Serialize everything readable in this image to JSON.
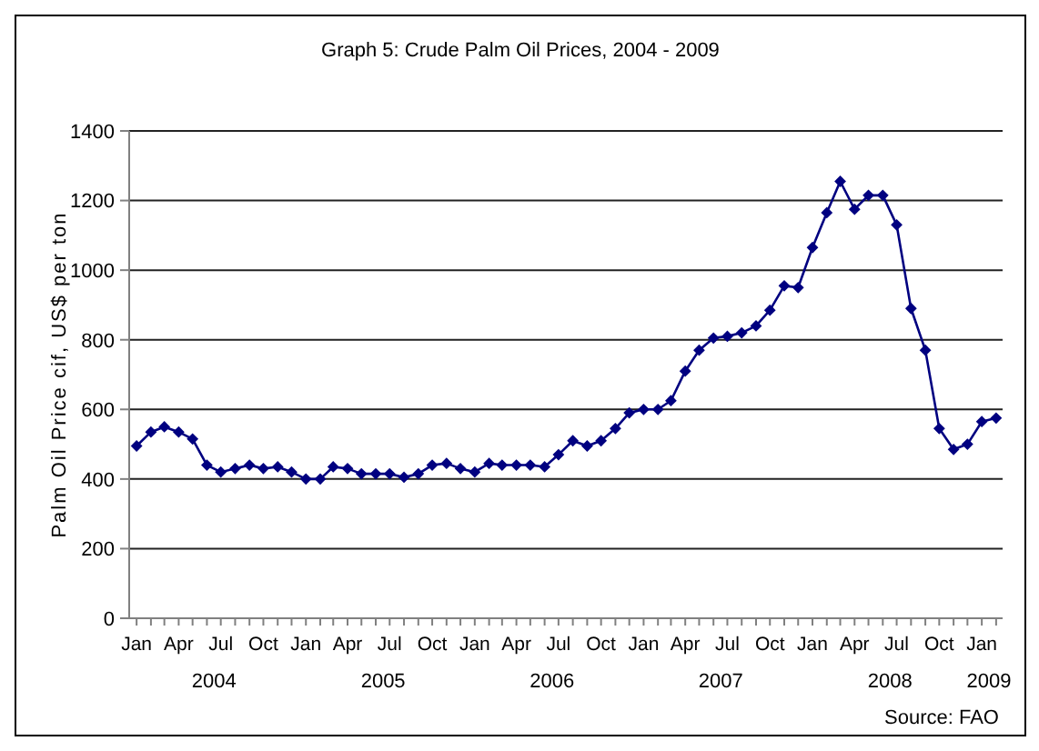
{
  "chart_data": {
    "type": "line",
    "title": "Graph 5: Crude Palm Oil Prices, 2004 - 2009",
    "ylabel": "Palm Oil Price cif, US$ per ton",
    "x": [
      "2004-01",
      "2004-02",
      "2004-03",
      "2004-04",
      "2004-05",
      "2004-06",
      "2004-07",
      "2004-08",
      "2004-09",
      "2004-10",
      "2004-11",
      "2004-12",
      "2005-01",
      "2005-02",
      "2005-03",
      "2005-04",
      "2005-05",
      "2005-06",
      "2005-07",
      "2005-08",
      "2005-09",
      "2005-10",
      "2005-11",
      "2005-12",
      "2006-01",
      "2006-02",
      "2006-03",
      "2006-04",
      "2006-05",
      "2006-06",
      "2006-07",
      "2006-08",
      "2006-09",
      "2006-10",
      "2006-11",
      "2006-12",
      "2007-01",
      "2007-02",
      "2007-03",
      "2007-04",
      "2007-05",
      "2007-06",
      "2007-07",
      "2007-08",
      "2007-09",
      "2007-10",
      "2007-11",
      "2007-12",
      "2008-01",
      "2008-02",
      "2008-03",
      "2008-04",
      "2008-05",
      "2008-06",
      "2008-07",
      "2008-08",
      "2008-09",
      "2008-10",
      "2008-11",
      "2008-12",
      "2009-01",
      "2009-02"
    ],
    "values": [
      495,
      535,
      550,
      535,
      515,
      440,
      420,
      430,
      440,
      430,
      435,
      420,
      400,
      400,
      435,
      430,
      415,
      415,
      415,
      405,
      415,
      440,
      445,
      430,
      420,
      445,
      440,
      440,
      440,
      435,
      470,
      510,
      495,
      510,
      545,
      590,
      600,
      600,
      625,
      710,
      770,
      805,
      810,
      820,
      840,
      885,
      955,
      950,
      1065,
      1165,
      1255,
      1175,
      1215,
      1215,
      1130,
      890,
      770,
      545,
      485,
      500,
      565,
      575
    ],
    "color": "#000080",
    "xlim": [
      "2003-12-16",
      "2009-02-15"
    ],
    "xticks": [
      {
        "value": "2004-01",
        "label": "Jan"
      },
      {
        "value": "2004-02",
        "label": null
      },
      {
        "value": "2004-03",
        "label": null
      },
      {
        "value": "2004-04",
        "label": "Apr"
      },
      {
        "value": "2004-05",
        "label": null
      },
      {
        "value": "2004-06",
        "label": null
      },
      {
        "value": "2004-07",
        "label": "Jul"
      },
      {
        "value": "2004-08",
        "label": null
      },
      {
        "value": "2004-09",
        "label": null
      },
      {
        "value": "2004-10",
        "label": "Oct"
      },
      {
        "value": "2004-11",
        "label": null
      },
      {
        "value": "2004-12",
        "label": null
      },
      {
        "value": "2005-01",
        "label": "Jan"
      },
      {
        "value": "2005-02",
        "label": null
      },
      {
        "value": "2005-03",
        "label": null
      },
      {
        "value": "2005-04",
        "label": "Apr"
      },
      {
        "value": "2005-05",
        "label": null
      },
      {
        "value": "2005-06",
        "label": null
      },
      {
        "value": "2005-07",
        "label": "Jul"
      },
      {
        "value": "2005-08",
        "label": null
      },
      {
        "value": "2005-09",
        "label": null
      },
      {
        "value": "2005-10",
        "label": "Oct"
      },
      {
        "value": "2005-11",
        "label": null
      },
      {
        "value": "2005-12",
        "label": null
      },
      {
        "value": "2006-01",
        "label": "Jan"
      },
      {
        "value": "2006-02",
        "label": null
      },
      {
        "value": "2006-03",
        "label": null
      },
      {
        "value": "2006-04",
        "label": "Apr"
      },
      {
        "value": "2006-05",
        "label": null
      },
      {
        "value": "2006-06",
        "label": null
      },
      {
        "value": "2006-07",
        "label": "Jul"
      },
      {
        "value": "2006-08",
        "label": null
      },
      {
        "value": "2006-09",
        "label": null
      },
      {
        "value": "2006-10",
        "label": "Oct"
      },
      {
        "value": "2006-11",
        "label": null
      },
      {
        "value": "2006-12",
        "label": null
      },
      {
        "value": "2007-01",
        "label": "Jan"
      },
      {
        "value": "2007-02",
        "label": null
      },
      {
        "value": "2007-03",
        "label": null
      },
      {
        "value": "2007-04",
        "label": "Apr"
      },
      {
        "value": "2007-05",
        "label": null
      },
      {
        "value": "2007-06",
        "label": null
      },
      {
        "value": "2007-07",
        "label": "Jul"
      },
      {
        "value": "2007-08",
        "label": null
      },
      {
        "value": "2007-09",
        "label": null
      },
      {
        "value": "2007-10",
        "label": "Oct"
      },
      {
        "value": "2007-11",
        "label": null
      },
      {
        "value": "2007-12",
        "label": null
      },
      {
        "value": "2008-01",
        "label": "Jan"
      },
      {
        "value": "2008-02",
        "label": null
      },
      {
        "value": "2008-03",
        "label": null
      },
      {
        "value": "2008-04",
        "label": "Apr"
      },
      {
        "value": "2008-05",
        "label": null
      },
      {
        "value": "2008-06",
        "label": null
      },
      {
        "value": "2008-07",
        "label": "Jul"
      },
      {
        "value": "2008-08",
        "label": null
      },
      {
        "value": "2008-09",
        "label": null
      },
      {
        "value": "2008-10",
        "label": "Oct"
      },
      {
        "value": "2008-11",
        "label": null
      },
      {
        "value": "2008-12",
        "label": null
      },
      {
        "value": "2009-01",
        "label": "Jan"
      },
      {
        "value": "2009-02",
        "label": null
      }
    ],
    "ylim": [
      0,
      1400
    ],
    "yticks": [
      0,
      200,
      400,
      600,
      800,
      1000,
      1200,
      1400
    ],
    "grid": "y",
    "marker": "diamond",
    "line_style": "solid",
    "annotations": [
      "2004",
      "2005",
      "2006",
      "2007",
      "2008",
      "2009",
      "Source: FAO"
    ]
  }
}
